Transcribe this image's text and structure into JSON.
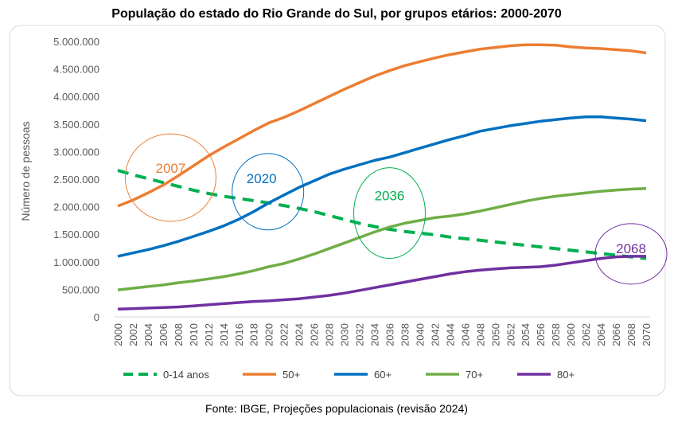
{
  "chart_data": {
    "type": "line",
    "title": "População do estado do Rio Grande do Sul, por grupos etários: 2000-2070",
    "ylabel": "Número de pessoas",
    "xlabel": "",
    "source": "Fonte: IBGE, Projeções populacionais (revisão 2024)",
    "ylim": [
      0,
      5000000
    ],
    "yticks": [
      "0",
      "500.000",
      "1.000.000",
      "1.500.000",
      "2.000.000",
      "2.500.000",
      "3.000.000",
      "3.500.000",
      "4.000.000",
      "4.500.000",
      "5.000.000"
    ],
    "x": [
      2000,
      2002,
      2004,
      2006,
      2008,
      2010,
      2012,
      2014,
      2016,
      2018,
      2020,
      2022,
      2024,
      2026,
      2028,
      2030,
      2032,
      2034,
      2036,
      2038,
      2040,
      2042,
      2044,
      2046,
      2048,
      2050,
      2052,
      2054,
      2056,
      2058,
      2060,
      2062,
      2064,
      2066,
      2068,
      2070
    ],
    "legend_position": "bottom",
    "grid": false,
    "series": [
      {
        "name": "0-14 anos",
        "color": "#00B050",
        "dashed": true,
        "values": [
          2660000,
          2580000,
          2510000,
          2440000,
          2370000,
          2300000,
          2240000,
          2190000,
          2150000,
          2110000,
          2070000,
          2020000,
          1970000,
          1910000,
          1840000,
          1770000,
          1700000,
          1640000,
          1590000,
          1550000,
          1520000,
          1490000,
          1450000,
          1420000,
          1390000,
          1360000,
          1330000,
          1300000,
          1270000,
          1240000,
          1210000,
          1180000,
          1150000,
          1120000,
          1090000,
          1060000
        ]
      },
      {
        "name": "50+",
        "color": "#ED7D31",
        "dashed": false,
        "values": [
          2010000,
          2120000,
          2250000,
          2390000,
          2560000,
          2740000,
          2920000,
          3080000,
          3230000,
          3380000,
          3520000,
          3620000,
          3740000,
          3870000,
          4000000,
          4130000,
          4250000,
          4370000,
          4470000,
          4560000,
          4630000,
          4700000,
          4760000,
          4810000,
          4860000,
          4890000,
          4920000,
          4940000,
          4940000,
          4930000,
          4900000,
          4880000,
          4870000,
          4850000,
          4830000,
          4790000
        ]
      },
      {
        "name": "60+",
        "color": "#0070C0",
        "dashed": false,
        "values": [
          1100000,
          1160000,
          1220000,
          1290000,
          1370000,
          1460000,
          1550000,
          1650000,
          1770000,
          1910000,
          2070000,
          2210000,
          2350000,
          2470000,
          2590000,
          2680000,
          2760000,
          2840000,
          2900000,
          2980000,
          3060000,
          3140000,
          3220000,
          3290000,
          3370000,
          3420000,
          3470000,
          3510000,
          3550000,
          3580000,
          3610000,
          3630000,
          3630000,
          3610000,
          3590000,
          3560000
        ]
      },
      {
        "name": "70+",
        "color": "#70AD47",
        "dashed": false,
        "values": [
          490000,
          520000,
          550000,
          580000,
          620000,
          650000,
          690000,
          730000,
          780000,
          840000,
          910000,
          970000,
          1050000,
          1140000,
          1240000,
          1340000,
          1440000,
          1540000,
          1630000,
          1700000,
          1750000,
          1800000,
          1830000,
          1870000,
          1920000,
          1980000,
          2040000,
          2100000,
          2150000,
          2190000,
          2220000,
          2250000,
          2280000,
          2300000,
          2320000,
          2330000
        ]
      },
      {
        "name": "80+",
        "color": "#7030A0",
        "dashed": false,
        "values": [
          140000,
          150000,
          160000,
          170000,
          180000,
          200000,
          220000,
          240000,
          260000,
          280000,
          290000,
          310000,
          330000,
          360000,
          390000,
          430000,
          480000,
          530000,
          580000,
          630000,
          680000,
          730000,
          780000,
          820000,
          850000,
          870000,
          890000,
          900000,
          910000,
          940000,
          980000,
          1020000,
          1060000,
          1090000,
          1100000,
          1100000
        ]
      }
    ],
    "annotations": [
      {
        "label": "2007",
        "year": 2007,
        "value": 2470000,
        "color": "#ED7D31"
      },
      {
        "label": "2020",
        "year": 2020,
        "value": 2070000,
        "color": "#0070C0"
      },
      {
        "label": "2036",
        "year": 2036,
        "value": 1610000,
        "color": "#00B050"
      },
      {
        "label": "2068",
        "year": 2068,
        "value": 1100000,
        "color": "#7030A0"
      }
    ]
  }
}
